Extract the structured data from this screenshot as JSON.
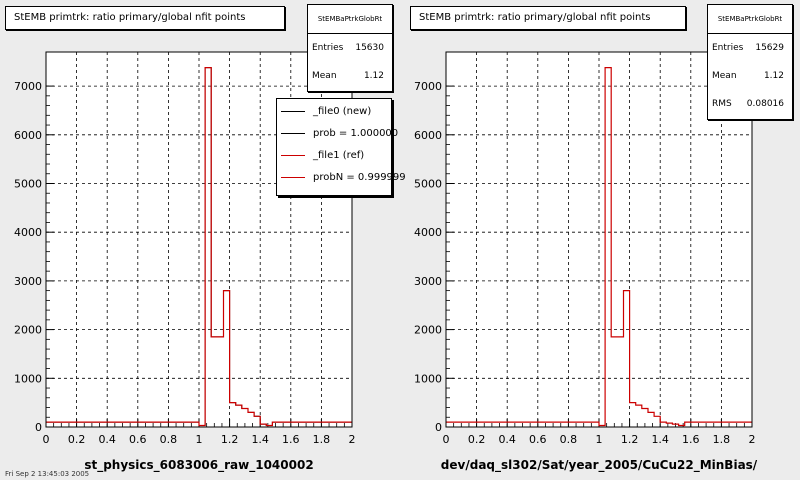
{
  "panels": [
    {
      "title": "StEMB primtrk: ratio primary/global nfit points",
      "xlabel": "st_physics_6083006_raw_1040002",
      "stats": {
        "name": "StEMBaPtrkGlobRt",
        "rows": [
          {
            "label": "Entries",
            "value": "15630"
          },
          {
            "label": "Mean",
            "value": "1.12"
          }
        ]
      },
      "legend": [
        {
          "text": "_file0 (new)",
          "color": "#000000"
        },
        {
          "text": "prob = 1.000000",
          "color": "#000000"
        },
        {
          "text": "_file1 (ref)",
          "color": "#cc0000"
        },
        {
          "text": "probN = 0.999999",
          "color": "#cc0000"
        }
      ]
    },
    {
      "title": "StEMB primtrk: ratio primary/global nfit points",
      "xlabel": "dev/daq_sl302/Sat/year_2005/CuCu22_MinBias/",
      "stats": {
        "name": "StEMBaPtrkGlobRt",
        "rows": [
          {
            "label": "Entries",
            "value": "15629"
          },
          {
            "label": "Mean",
            "value": "1.12"
          },
          {
            "label": "RMS",
            "value": "0.08016"
          }
        ]
      },
      "legend": []
    }
  ],
  "footer": "Fri Sep  2 13:45:03 2005",
  "chart_data": [
    {
      "type": "bar",
      "title": "StEMB primtrk: ratio primary/global nfit points",
      "xlabel": "st_physics_6083006_raw_1040002",
      "ylabel": "",
      "xlim": [
        0,
        2
      ],
      "ylim": [
        0,
        7700
      ],
      "x_ticks": [
        "0",
        "0.2",
        "0.4",
        "0.6",
        "0.8",
        "1",
        "1.2",
        "1.4",
        "1.6",
        "1.8",
        "2"
      ],
      "y_ticks": [
        "0",
        "1000",
        "2000",
        "3000",
        "4000",
        "5000",
        "6000",
        "7000"
      ],
      "grid": true,
      "bin_edges": [
        1.0,
        1.04,
        1.08,
        1.12,
        1.16,
        1.2,
        1.24,
        1.28,
        1.32,
        1.36,
        1.4,
        1.44,
        1.48
      ],
      "series": [
        {
          "name": "_file0 (new)",
          "color": "#000000",
          "values": [
            30,
            7380,
            1850,
            1850,
            2800,
            500,
            450,
            380,
            300,
            220,
            60,
            30
          ]
        },
        {
          "name": "_file1 (ref)",
          "color": "#cc0000",
          "values": [
            30,
            7380,
            1850,
            1850,
            2800,
            500,
            450,
            380,
            300,
            220,
            60,
            30
          ]
        }
      ],
      "baseline": 100,
      "legend_position": "top-right"
    },
    {
      "type": "bar",
      "title": "StEMB primtrk: ratio primary/global nfit points",
      "xlabel": "dev/daq_sl302/Sat/year_2005/CuCu22_MinBias/",
      "ylabel": "",
      "xlim": [
        0,
        2
      ],
      "ylim": [
        0,
        7700
      ],
      "x_ticks": [
        "0",
        "0.2",
        "0.4",
        "0.6",
        "0.8",
        "1",
        "1.2",
        "1.4",
        "1.6",
        "1.8",
        "2"
      ],
      "y_ticks": [
        "0",
        "1000",
        "2000",
        "3000",
        "4000",
        "5000",
        "6000",
        "7000"
      ],
      "grid": true,
      "bin_edges": [
        1.0,
        1.04,
        1.08,
        1.12,
        1.16,
        1.2,
        1.24,
        1.28,
        1.32,
        1.36,
        1.4,
        1.44,
        1.48,
        1.52,
        1.56
      ],
      "series": [
        {
          "color": "#cc0000",
          "values": [
            30,
            7380,
            1850,
            1850,
            2800,
            500,
            450,
            380,
            300,
            220,
            100,
            80,
            60,
            30
          ]
        }
      ],
      "baseline": 100
    }
  ]
}
